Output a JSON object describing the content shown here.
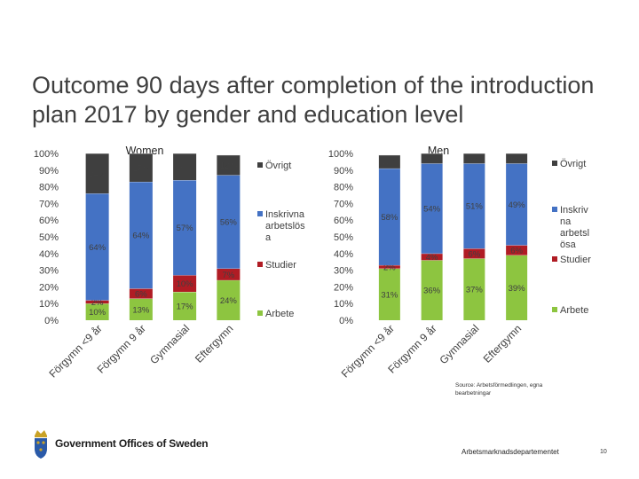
{
  "slide": {
    "title": "Outcome 90 days after completion of the introduction plan 2017 by gender and education level",
    "source": "Source: Arbetsförmedlingen, egna bearbetningar",
    "organization": "Government Offices of Sweden",
    "department": "Arbetsmarknadsdepartementet",
    "page_number": "10"
  },
  "colors": {
    "arbete": "#8dc540",
    "studier": "#b01c24",
    "inskrivna": "#4472c4",
    "ovrigt": "#3f3f3f",
    "tick": "#d9d9d9",
    "crest_blue": "#2a5aa8",
    "crest_gold": "#c9a227"
  },
  "chart_data": [
    {
      "type": "bar",
      "stacked": true,
      "title": "Women",
      "categories": [
        "Förgymn <9 år",
        "Förgymn 9 år",
        "Gymnasial",
        "Eftergymn"
      ],
      "yticks": [
        "0%",
        "10%",
        "20%",
        "30%",
        "40%",
        "50%",
        "60%",
        "70%",
        "80%",
        "90%",
        "100%"
      ],
      "ylim": [
        0,
        100
      ],
      "series": [
        {
          "name": "Arbete",
          "values": [
            10,
            13,
            17,
            24
          ],
          "labels": [
            "10%",
            "13%",
            "17%",
            "24%"
          ]
        },
        {
          "name": "Studier",
          "values": [
            2,
            6,
            10,
            7
          ],
          "labels": [
            "2%",
            "6%",
            "10%",
            "7%"
          ]
        },
        {
          "name": "Inskrivna arbetslösa",
          "values": [
            64,
            64,
            57,
            56
          ],
          "labels": [
            "64%",
            "64%",
            "57%",
            "56%"
          ]
        },
        {
          "name": "Övrigt",
          "values": [
            24,
            17,
            16,
            12
          ],
          "labels": [
            "24%",
            "17%",
            "16%",
            "12%"
          ]
        }
      ],
      "legend": [
        "Övrigt",
        "Inskrivna arbetslös a",
        "Studier",
        "Arbete"
      ]
    },
    {
      "type": "bar",
      "stacked": true,
      "title": "Men",
      "categories": [
        "Förgymn <9 år",
        "Förgymn 9 år",
        "Gymnasial",
        "Eftergymn"
      ],
      "yticks": [
        "0%",
        "10%",
        "20%",
        "30%",
        "40%",
        "50%",
        "60%",
        "70%",
        "80%",
        "90%",
        "100%"
      ],
      "ylim": [
        0,
        100
      ],
      "series": [
        {
          "name": "Arbete",
          "values": [
            31,
            36,
            37,
            39
          ],
          "labels": [
            "31%",
            "36%",
            "37%",
            "39%"
          ]
        },
        {
          "name": "Studier",
          "values": [
            2,
            4,
            6,
            6
          ],
          "labels": [
            "2%",
            "4%",
            "6%",
            "6%"
          ]
        },
        {
          "name": "Inskrivna arbetslösa",
          "values": [
            58,
            54,
            51,
            49
          ],
          "labels": [
            "58%",
            "54%",
            "51%",
            "49%"
          ]
        },
        {
          "name": "Övrigt",
          "values": [
            8,
            6,
            6,
            6
          ],
          "labels": [
            "8%",
            "6%",
            "6%",
            "6%"
          ]
        }
      ],
      "legend": [
        "Övrigt",
        "Inskriv na arbetsl ösa",
        "Studier",
        "Arbete"
      ]
    }
  ]
}
